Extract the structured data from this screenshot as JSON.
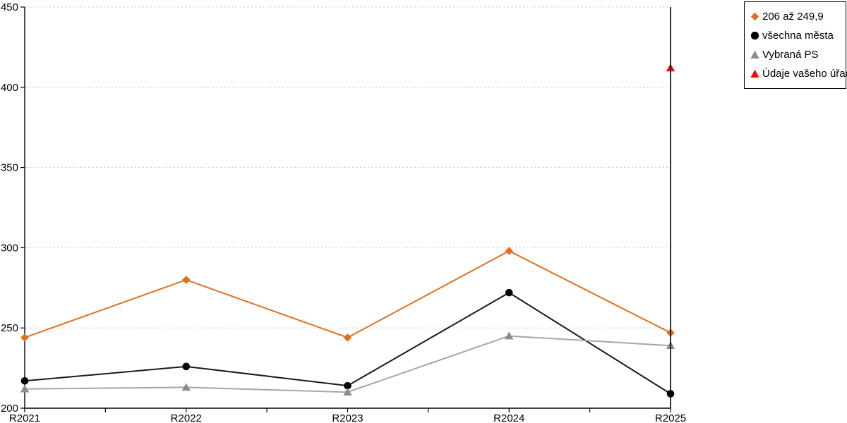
{
  "chart_data": {
    "type": "line",
    "title": "",
    "xlabel": "",
    "ylabel": "",
    "categories": [
      "R2021",
      "R2022",
      "R2023",
      "R2024",
      "R2025"
    ],
    "series": [
      {
        "name": "206 až 249,9",
        "marker": "diamond",
        "color": "#E07020",
        "marker_color": "#E07020",
        "values": [
          244,
          280,
          244,
          298,
          247
        ]
      },
      {
        "name": "všechna města",
        "marker": "circle",
        "color": "#1A1A1A",
        "marker_color": "#000000",
        "values": [
          217,
          226,
          214,
          272,
          209
        ]
      },
      {
        "name": "Vybraná PS",
        "marker": "triangle",
        "color": "#A6A6A6",
        "marker_color": "#8C8C8C",
        "values": [
          212,
          213,
          210,
          245,
          239
        ]
      },
      {
        "name": "Údaje vašeho úřadu",
        "marker": "triangle",
        "color": "#FF0000",
        "marker_color": "#FF0000",
        "values": [
          null,
          null,
          null,
          null,
          412
        ]
      }
    ],
    "ylim": [
      200,
      450
    ],
    "y_ticks": [
      200,
      250,
      300,
      350,
      400,
      450
    ],
    "grid": "horizontal-dotted",
    "legend_position": "top-right"
  },
  "colors": {
    "axis": "#000000",
    "gridline": "#C6C6C6",
    "background": "#FFFFFF"
  }
}
